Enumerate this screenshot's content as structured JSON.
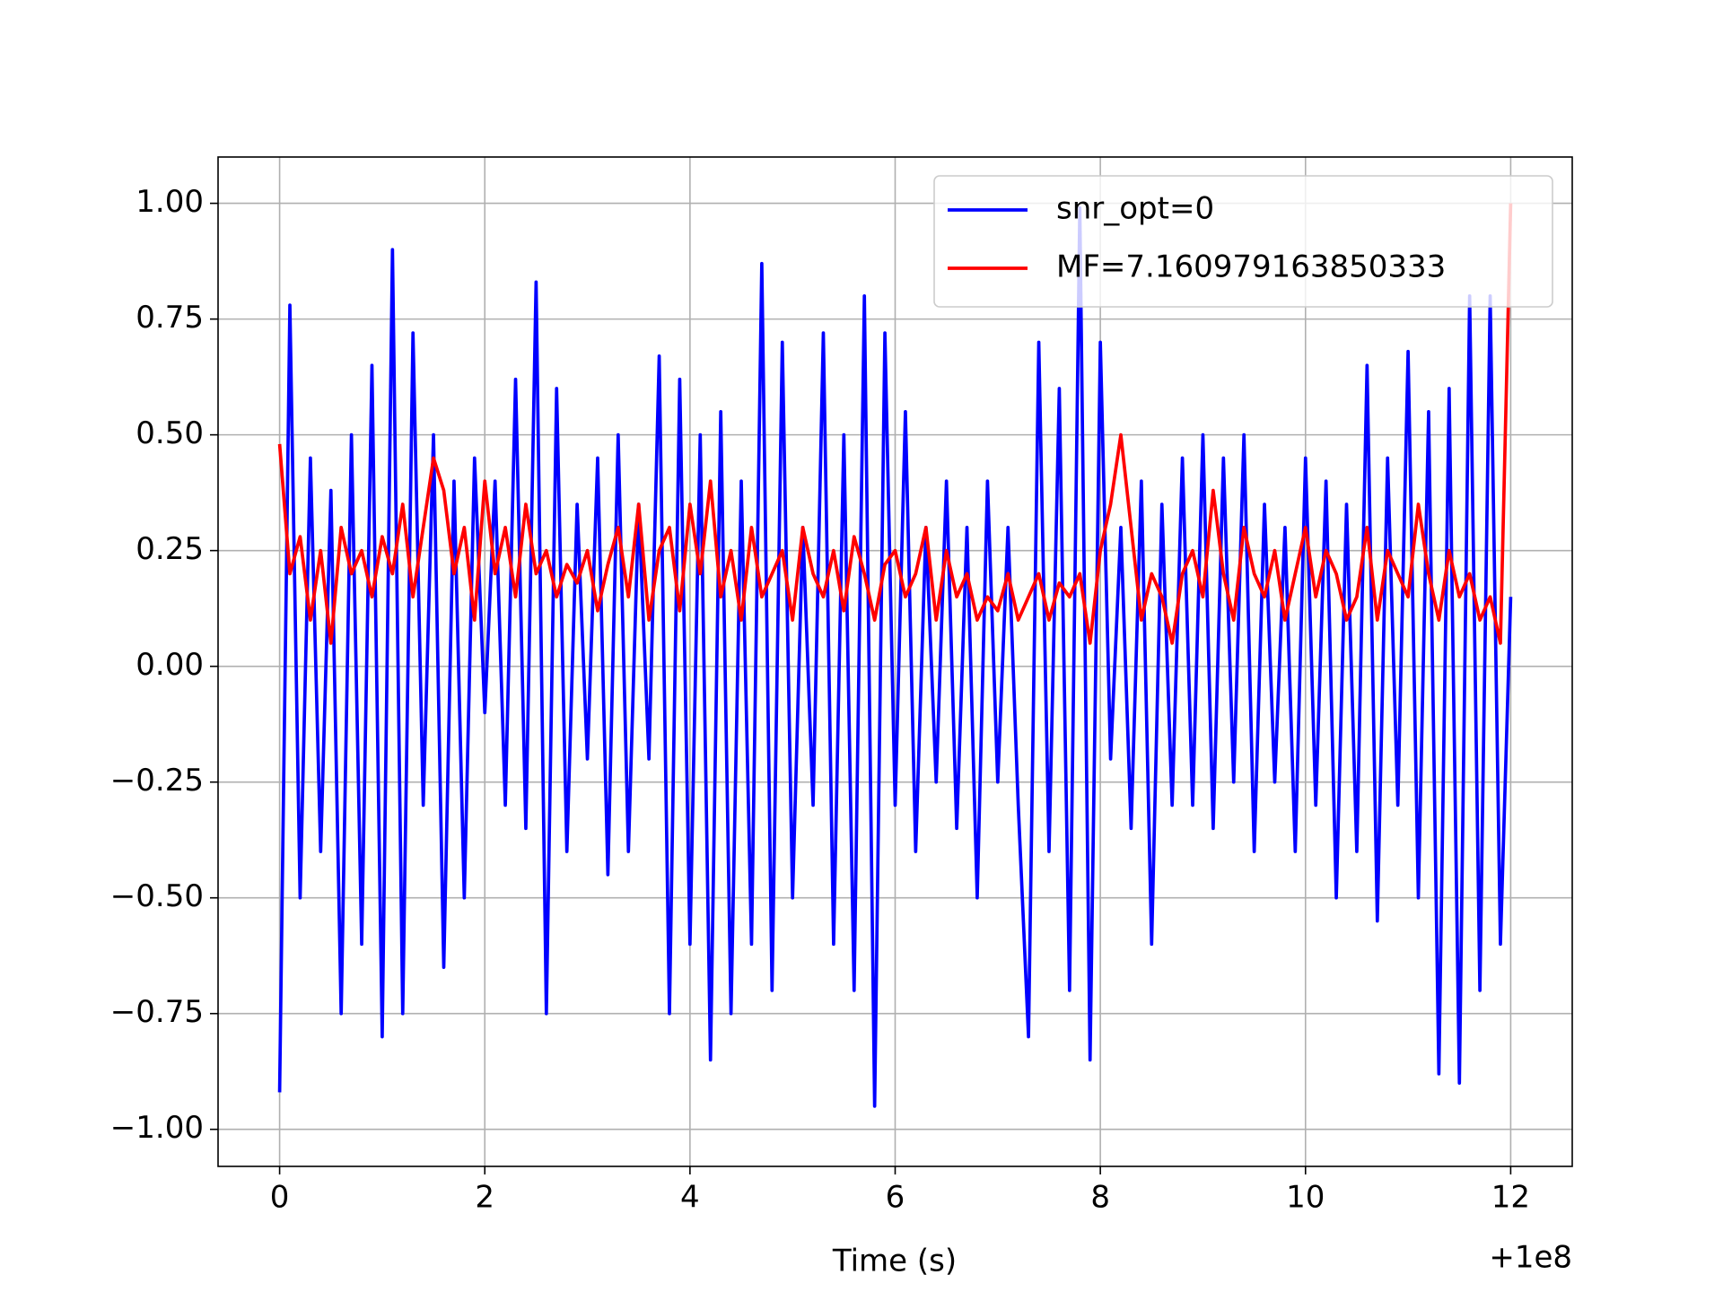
{
  "chart_data": {
    "type": "line",
    "xlabel": "Time (s)",
    "x_offset_label": "+1e8",
    "x": [
      0,
      0.1,
      0.2,
      0.3,
      0.4,
      0.5,
      0.6,
      0.7,
      0.8,
      0.9,
      1,
      1.1,
      1.2,
      1.3,
      1.4,
      1.5,
      1.6,
      1.7,
      1.8,
      1.9,
      2,
      2.1,
      2.2,
      2.3,
      2.4,
      2.5,
      2.6,
      2.7,
      2.8,
      2.9,
      3,
      3.1,
      3.2,
      3.3,
      3.4,
      3.5,
      3.6,
      3.7,
      3.8,
      3.9,
      4,
      4.1,
      4.2,
      4.3,
      4.4,
      4.5,
      4.6,
      4.7,
      4.8,
      4.9,
      5,
      5.1,
      5.2,
      5.3,
      5.4,
      5.5,
      5.6,
      5.7,
      5.8,
      5.9,
      6,
      6.1,
      6.2,
      6.3,
      6.4,
      6.5,
      6.6,
      6.7,
      6.8,
      6.9,
      7,
      7.1,
      7.2,
      7.3,
      7.4,
      7.5,
      7.6,
      7.7,
      7.8,
      7.9,
      8,
      8.1,
      8.2,
      8.3,
      8.4,
      8.5,
      8.6,
      8.7,
      8.8,
      8.9,
      9,
      9.1,
      9.2,
      9.3,
      9.4,
      9.5,
      9.6,
      9.7,
      9.8,
      9.9,
      10,
      10.1,
      10.2,
      10.3,
      10.4,
      10.5,
      10.6,
      10.7,
      10.8,
      10.9,
      11,
      11.1,
      11.2,
      11.3,
      11.4,
      11.5,
      11.6,
      11.7,
      11.8,
      11.9,
      12
    ],
    "series": [
      {
        "name": "snr_opt=0",
        "color": "#0000ff",
        "values": [
          -0.92,
          0.78,
          -0.5,
          0.45,
          -0.4,
          0.38,
          -0.75,
          0.5,
          -0.6,
          0.65,
          -0.8,
          0.9,
          -0.75,
          0.72,
          -0.3,
          0.5,
          -0.65,
          0.4,
          -0.5,
          0.45,
          -0.1,
          0.4,
          -0.3,
          0.62,
          -0.35,
          0.83,
          -0.75,
          0.6,
          -0.4,
          0.35,
          -0.2,
          0.45,
          -0.45,
          0.5,
          -0.4,
          0.35,
          -0.2,
          0.67,
          -0.75,
          0.62,
          -0.6,
          0.5,
          -0.85,
          0.55,
          -0.75,
          0.4,
          -0.6,
          0.87,
          -0.7,
          0.7,
          -0.5,
          0.3,
          -0.3,
          0.72,
          -0.6,
          0.5,
          -0.7,
          0.8,
          -0.95,
          0.72,
          -0.3,
          0.55,
          -0.4,
          0.3,
          -0.25,
          0.4,
          -0.35,
          0.3,
          -0.5,
          0.4,
          -0.25,
          0.3,
          -0.3,
          -0.8,
          0.7,
          -0.4,
          0.6,
          -0.7,
          0.99,
          -0.85,
          0.7,
          -0.2,
          0.3,
          -0.35,
          0.4,
          -0.6,
          0.35,
          -0.3,
          0.45,
          -0.3,
          0.5,
          -0.35,
          0.45,
          -0.25,
          0.5,
          -0.4,
          0.35,
          -0.25,
          0.3,
          -0.4,
          0.45,
          -0.3,
          0.4,
          -0.5,
          0.35,
          -0.4,
          0.65,
          -0.55,
          0.45,
          -0.3,
          0.68,
          -0.5,
          0.55,
          -0.88,
          0.6,
          -0.9,
          0.8,
          -0.7,
          0.8,
          -0.6,
          0.15
        ]
      },
      {
        "name": "MF=7.160979163850333",
        "color": "#ff0000",
        "values": [
          0.48,
          0.2,
          0.28,
          0.1,
          0.25,
          0.05,
          0.3,
          0.2,
          0.25,
          0.15,
          0.28,
          0.2,
          0.35,
          0.15,
          0.3,
          0.45,
          0.38,
          0.2,
          0.3,
          0.1,
          0.4,
          0.2,
          0.3,
          0.15,
          0.35,
          0.2,
          0.25,
          0.15,
          0.22,
          0.18,
          0.25,
          0.12,
          0.22,
          0.3,
          0.15,
          0.35,
          0.1,
          0.25,
          0.3,
          0.12,
          0.35,
          0.2,
          0.4,
          0.15,
          0.25,
          0.1,
          0.3,
          0.15,
          0.2,
          0.25,
          0.1,
          0.3,
          0.2,
          0.15,
          0.25,
          0.12,
          0.28,
          0.2,
          0.1,
          0.22,
          0.25,
          0.15,
          0.2,
          0.3,
          0.1,
          0.25,
          0.15,
          0.2,
          0.1,
          0.15,
          0.12,
          0.2,
          0.1,
          0.15,
          0.2,
          0.1,
          0.18,
          0.15,
          0.2,
          0.05,
          0.25,
          0.35,
          0.5,
          0.3,
          0.1,
          0.2,
          0.15,
          0.05,
          0.2,
          0.25,
          0.15,
          0.38,
          0.2,
          0.1,
          0.3,
          0.2,
          0.15,
          0.25,
          0.1,
          0.2,
          0.3,
          0.15,
          0.25,
          0.2,
          0.1,
          0.15,
          0.3,
          0.1,
          0.25,
          0.2,
          0.15,
          0.35,
          0.2,
          0.1,
          0.25,
          0.15,
          0.2,
          0.1,
          0.15,
          0.05,
          1.0
        ]
      }
    ],
    "xlim": [
      -0.6,
      12.6
    ],
    "ylim": [
      -1.08,
      1.1
    ],
    "xticks": [
      0,
      2,
      4,
      6,
      8,
      10,
      12
    ],
    "yticks": [
      {
        "value": -1,
        "label": "−1.00"
      },
      {
        "value": -0.75,
        "label": "−0.75"
      },
      {
        "value": -0.5,
        "label": "−0.50"
      },
      {
        "value": -0.25,
        "label": "−0.25"
      },
      {
        "value": 0,
        "label": "0.00"
      },
      {
        "value": 0.25,
        "label": "0.25"
      },
      {
        "value": 0.5,
        "label": "0.50"
      },
      {
        "value": 0.75,
        "label": "0.75"
      },
      {
        "value": 1,
        "label": "1.00"
      }
    ],
    "grid": true,
    "legend": "upper right"
  }
}
